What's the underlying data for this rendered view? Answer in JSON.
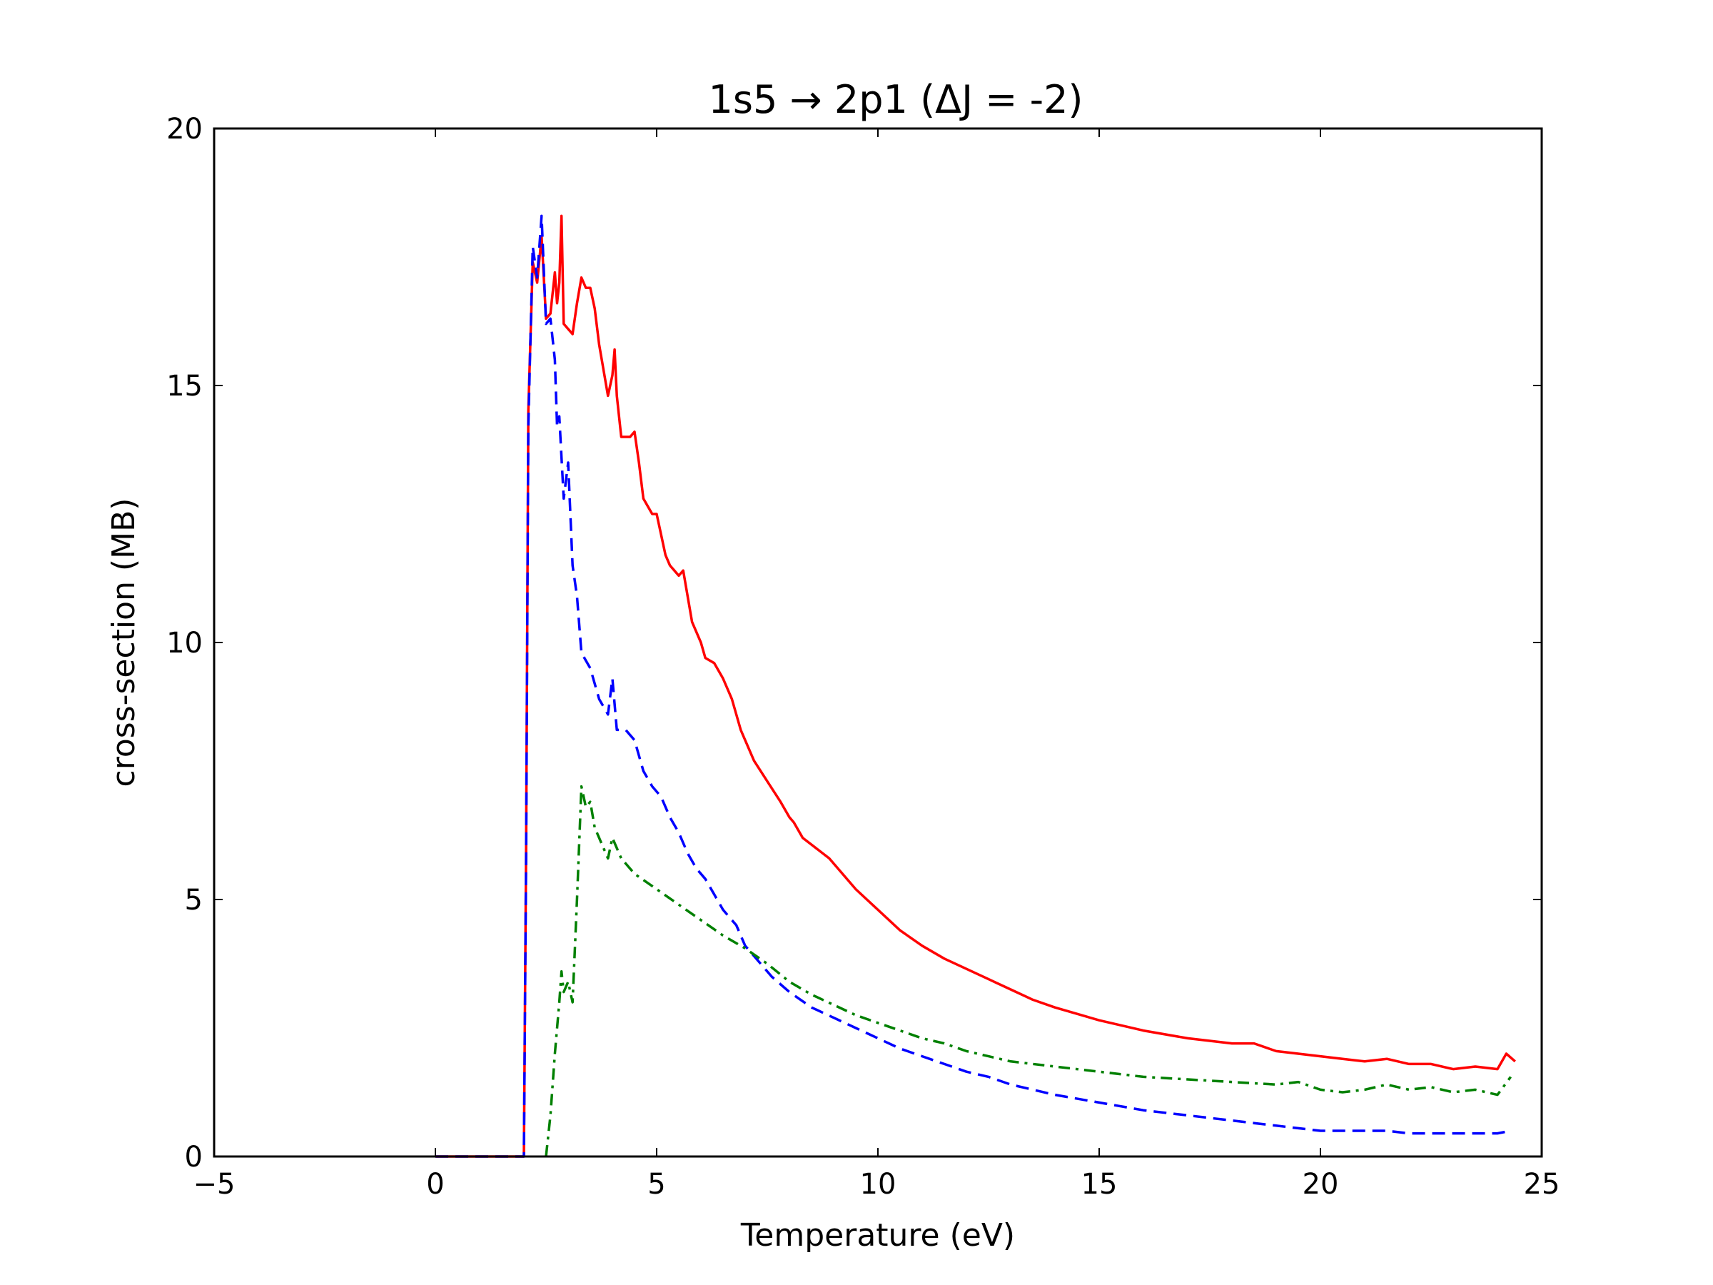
{
  "chart_data": {
    "type": "line",
    "title": "1s5 → 2p1  (ΔJ = -2)",
    "xlabel": "Temperature (eV)",
    "ylabel": "cross-section (MB)",
    "xlim": [
      -5,
      25
    ],
    "ylim": [
      0,
      20
    ],
    "xticks": [
      -5,
      0,
      5,
      10,
      15,
      20,
      25
    ],
    "xtick_labels": [
      "−5",
      "0",
      "5",
      "10",
      "15",
      "20",
      "25"
    ],
    "yticks": [
      0,
      5,
      10,
      15,
      20
    ],
    "ytick_labels": [
      "0",
      "5",
      "10",
      "15",
      "20"
    ],
    "grid": false,
    "legend": "none",
    "series": [
      {
        "color": "#ff0000",
        "style": "solid",
        "points": [
          [
            0,
            0
          ],
          [
            1.9,
            0
          ],
          [
            2.0,
            0
          ],
          [
            2.05,
            6
          ],
          [
            2.1,
            14.5
          ],
          [
            2.2,
            17.4
          ],
          [
            2.3,
            17.0
          ],
          [
            2.4,
            17.9
          ],
          [
            2.5,
            16.3
          ],
          [
            2.6,
            16.4
          ],
          [
            2.7,
            17.2
          ],
          [
            2.75,
            16.6
          ],
          [
            2.8,
            17.0
          ],
          [
            2.85,
            18.3
          ],
          [
            2.9,
            16.2
          ],
          [
            3.0,
            16.1
          ],
          [
            3.1,
            16.0
          ],
          [
            3.2,
            16.6
          ],
          [
            3.3,
            17.1
          ],
          [
            3.4,
            16.9
          ],
          [
            3.5,
            16.9
          ],
          [
            3.6,
            16.5
          ],
          [
            3.7,
            15.8
          ],
          [
            3.9,
            14.8
          ],
          [
            4.0,
            15.2
          ],
          [
            4.05,
            15.7
          ],
          [
            4.1,
            14.8
          ],
          [
            4.2,
            14.0
          ],
          [
            4.4,
            14.0
          ],
          [
            4.5,
            14.1
          ],
          [
            4.6,
            13.5
          ],
          [
            4.7,
            12.8
          ],
          [
            4.9,
            12.5
          ],
          [
            5.0,
            12.5
          ],
          [
            5.1,
            12.1
          ],
          [
            5.2,
            11.7
          ],
          [
            5.3,
            11.5
          ],
          [
            5.4,
            11.4
          ],
          [
            5.5,
            11.3
          ],
          [
            5.6,
            11.4
          ],
          [
            5.7,
            10.9
          ],
          [
            5.8,
            10.4
          ],
          [
            6.0,
            10.0
          ],
          [
            6.1,
            9.7
          ],
          [
            6.3,
            9.6
          ],
          [
            6.5,
            9.3
          ],
          [
            6.7,
            8.9
          ],
          [
            6.9,
            8.3
          ],
          [
            7.0,
            8.1
          ],
          [
            7.2,
            7.7
          ],
          [
            7.5,
            7.3
          ],
          [
            7.8,
            6.9
          ],
          [
            8.0,
            6.6
          ],
          [
            8.1,
            6.5
          ],
          [
            8.3,
            6.2
          ],
          [
            8.6,
            6.0
          ],
          [
            8.9,
            5.8
          ],
          [
            9.2,
            5.5
          ],
          [
            9.5,
            5.2
          ],
          [
            10.0,
            4.8
          ],
          [
            10.5,
            4.4
          ],
          [
            11.0,
            4.1
          ],
          [
            11.5,
            3.85
          ],
          [
            12.0,
            3.65
          ],
          [
            12.5,
            3.45
          ],
          [
            13.0,
            3.25
          ],
          [
            13.5,
            3.05
          ],
          [
            14.0,
            2.9
          ],
          [
            15.0,
            2.65
          ],
          [
            16.0,
            2.45
          ],
          [
            17.0,
            2.3
          ],
          [
            18.0,
            2.2
          ],
          [
            18.5,
            2.2
          ],
          [
            19.0,
            2.05
          ],
          [
            19.5,
            2.0
          ],
          [
            20.0,
            1.95
          ],
          [
            20.5,
            1.9
          ],
          [
            21.0,
            1.85
          ],
          [
            21.5,
            1.9
          ],
          [
            22.0,
            1.8
          ],
          [
            22.5,
            1.8
          ],
          [
            23.0,
            1.7
          ],
          [
            23.5,
            1.75
          ],
          [
            24.0,
            1.7
          ],
          [
            24.2,
            2.0
          ],
          [
            24.4,
            1.85
          ]
        ]
      },
      {
        "color": "#0000ff",
        "style": "dashed",
        "points": [
          [
            0,
            0
          ],
          [
            1.9,
            0
          ],
          [
            2.0,
            0
          ],
          [
            2.05,
            5.8
          ],
          [
            2.1,
            14.2
          ],
          [
            2.2,
            17.7
          ],
          [
            2.3,
            17.1
          ],
          [
            2.4,
            18.3
          ],
          [
            2.5,
            16.2
          ],
          [
            2.6,
            16.3
          ],
          [
            2.7,
            15.5
          ],
          [
            2.75,
            14.2
          ],
          [
            2.8,
            14.4
          ],
          [
            2.85,
            13.6
          ],
          [
            2.9,
            12.8
          ],
          [
            3.0,
            13.5
          ],
          [
            3.1,
            11.5
          ],
          [
            3.2,
            10.9
          ],
          [
            3.3,
            9.8
          ],
          [
            3.5,
            9.5
          ],
          [
            3.7,
            8.9
          ],
          [
            3.9,
            8.6
          ],
          [
            4.0,
            9.3
          ],
          [
            4.1,
            8.3
          ],
          [
            4.3,
            8.3
          ],
          [
            4.5,
            8.1
          ],
          [
            4.7,
            7.5
          ],
          [
            4.9,
            7.2
          ],
          [
            5.1,
            7.0
          ],
          [
            5.3,
            6.6
          ],
          [
            5.5,
            6.3
          ],
          [
            5.7,
            5.9
          ],
          [
            5.9,
            5.6
          ],
          [
            6.1,
            5.4
          ],
          [
            6.3,
            5.1
          ],
          [
            6.5,
            4.8
          ],
          [
            6.8,
            4.5
          ],
          [
            7.0,
            4.1
          ],
          [
            7.3,
            3.8
          ],
          [
            7.6,
            3.5
          ],
          [
            8.0,
            3.2
          ],
          [
            8.5,
            2.9
          ],
          [
            9.0,
            2.7
          ],
          [
            9.5,
            2.5
          ],
          [
            10.0,
            2.3
          ],
          [
            10.5,
            2.1
          ],
          [
            11.0,
            1.95
          ],
          [
            11.5,
            1.8
          ],
          [
            12.0,
            1.65
          ],
          [
            12.5,
            1.55
          ],
          [
            13.0,
            1.4
          ],
          [
            13.5,
            1.3
          ],
          [
            14.0,
            1.2
          ],
          [
            15.0,
            1.05
          ],
          [
            16.0,
            0.9
          ],
          [
            17.0,
            0.8
          ],
          [
            18.0,
            0.7
          ],
          [
            18.5,
            0.65
          ],
          [
            19.0,
            0.6
          ],
          [
            19.5,
            0.55
          ],
          [
            20.0,
            0.5
          ],
          [
            20.5,
            0.5
          ],
          [
            21.0,
            0.5
          ],
          [
            21.5,
            0.5
          ],
          [
            22.0,
            0.45
          ],
          [
            22.5,
            0.45
          ],
          [
            23.0,
            0.45
          ],
          [
            23.5,
            0.45
          ],
          [
            24.0,
            0.45
          ],
          [
            24.3,
            0.5
          ]
        ]
      },
      {
        "color": "#008000",
        "style": "dashdot",
        "points": [
          [
            2.5,
            0
          ],
          [
            2.6,
            0.8
          ],
          [
            2.7,
            2.0
          ],
          [
            2.8,
            3.0
          ],
          [
            2.85,
            3.6
          ],
          [
            2.9,
            3.2
          ],
          [
            3.0,
            3.4
          ],
          [
            3.1,
            3.0
          ],
          [
            3.2,
            5.0
          ],
          [
            3.3,
            7.2
          ],
          [
            3.4,
            6.8
          ],
          [
            3.5,
            6.9
          ],
          [
            3.6,
            6.4
          ],
          [
            3.7,
            6.2
          ],
          [
            3.9,
            5.8
          ],
          [
            4.0,
            6.2
          ],
          [
            4.2,
            5.8
          ],
          [
            4.5,
            5.5
          ],
          [
            5.0,
            5.2
          ],
          [
            5.5,
            4.9
          ],
          [
            6.0,
            4.6
          ],
          [
            6.5,
            4.3
          ],
          [
            7.0,
            4.05
          ],
          [
            7.5,
            3.75
          ],
          [
            8.0,
            3.4
          ],
          [
            8.5,
            3.15
          ],
          [
            9.0,
            2.95
          ],
          [
            9.5,
            2.75
          ],
          [
            10.0,
            2.6
          ],
          [
            10.5,
            2.45
          ],
          [
            11.0,
            2.3
          ],
          [
            11.5,
            2.2
          ],
          [
            12.0,
            2.05
          ],
          [
            12.5,
            1.95
          ],
          [
            13.0,
            1.85
          ],
          [
            14.0,
            1.75
          ],
          [
            15.0,
            1.65
          ],
          [
            16.0,
            1.55
          ],
          [
            17.0,
            1.5
          ],
          [
            18.0,
            1.45
          ],
          [
            19.0,
            1.4
          ],
          [
            19.5,
            1.45
          ],
          [
            20.0,
            1.3
          ],
          [
            20.5,
            1.25
          ],
          [
            21.0,
            1.3
          ],
          [
            21.5,
            1.4
          ],
          [
            22.0,
            1.3
          ],
          [
            22.5,
            1.35
          ],
          [
            23.0,
            1.25
          ],
          [
            23.5,
            1.3
          ],
          [
            24.0,
            1.2
          ],
          [
            24.3,
            1.55
          ]
        ]
      }
    ]
  }
}
